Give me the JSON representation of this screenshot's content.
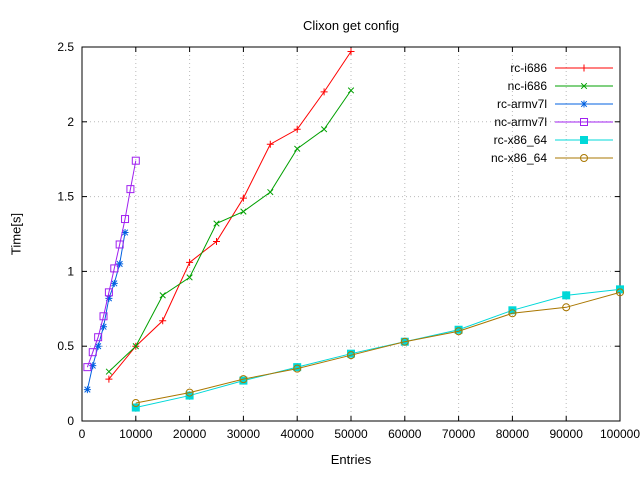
{
  "chart_data": {
    "type": "line",
    "title": "Clixon get config",
    "xlabel": "Entries",
    "ylabel": "Time[s]",
    "xlim": [
      0,
      100000
    ],
    "ylim": [
      0,
      2.5
    ],
    "grid": true,
    "legend_position": "top-right",
    "xticks": [
      [
        0,
        "0"
      ],
      [
        10000,
        "10000"
      ],
      [
        20000,
        "20000"
      ],
      [
        30000,
        "30000"
      ],
      [
        40000,
        "40000"
      ],
      [
        50000,
        "50000"
      ],
      [
        60000,
        "60000"
      ],
      [
        70000,
        "70000"
      ],
      [
        80000,
        "80000"
      ],
      [
        90000,
        "90000"
      ],
      [
        100000,
        "100000"
      ]
    ],
    "yticks": [
      [
        0,
        "0"
      ],
      [
        0.5,
        "0.5"
      ],
      [
        1,
        "1"
      ],
      [
        1.5,
        "1.5"
      ],
      [
        2,
        "2"
      ],
      [
        2.5,
        "2.5"
      ]
    ],
    "series": [
      {
        "name": "rc-i686",
        "color": "#ff0000",
        "marker": "plus",
        "x": [
          5000,
          10000,
          15000,
          20000,
          25000,
          30000,
          35000,
          40000,
          45000,
          50000
        ],
        "y": [
          0.28,
          0.5,
          0.67,
          1.06,
          1.2,
          1.49,
          1.85,
          1.95,
          2.2,
          2.47
        ]
      },
      {
        "name": "nc-i686",
        "color": "#00a000",
        "marker": "cross",
        "x": [
          5000,
          10000,
          15000,
          20000,
          25000,
          30000,
          35000,
          40000,
          45000,
          50000
        ],
        "y": [
          0.33,
          0.5,
          0.84,
          0.96,
          1.32,
          1.4,
          1.53,
          1.82,
          1.95,
          2.21
        ]
      },
      {
        "name": "rc-armv7l",
        "color": "#0060e0",
        "marker": "asterisk",
        "x": [
          1000,
          2000,
          3000,
          4000,
          5000,
          6000,
          7000,
          8000
        ],
        "y": [
          0.21,
          0.37,
          0.5,
          0.63,
          0.82,
          0.92,
          1.05,
          1.26
        ]
      },
      {
        "name": "nc-armv7l",
        "color": "#a020f0",
        "marker": "square-open",
        "x": [
          1000,
          2000,
          3000,
          4000,
          5000,
          6000,
          7000,
          8000,
          9000,
          10000
        ],
        "y": [
          0.36,
          0.46,
          0.56,
          0.7,
          0.86,
          1.02,
          1.18,
          1.35,
          1.55,
          1.74
        ]
      },
      {
        "name": "rc-x86_64",
        "color": "#00d8d8",
        "marker": "square-filled",
        "x": [
          10000,
          20000,
          30000,
          40000,
          50000,
          60000,
          70000,
          80000,
          90000,
          100000
        ],
        "y": [
          0.09,
          0.17,
          0.27,
          0.36,
          0.45,
          0.53,
          0.61,
          0.74,
          0.84,
          0.88
        ]
      },
      {
        "name": "nc-x86_64",
        "color": "#aa7700",
        "marker": "circle-open",
        "x": [
          10000,
          20000,
          30000,
          40000,
          50000,
          60000,
          70000,
          80000,
          90000,
          100000
        ],
        "y": [
          0.12,
          0.19,
          0.28,
          0.35,
          0.44,
          0.53,
          0.6,
          0.72,
          0.76,
          0.86
        ]
      }
    ]
  }
}
